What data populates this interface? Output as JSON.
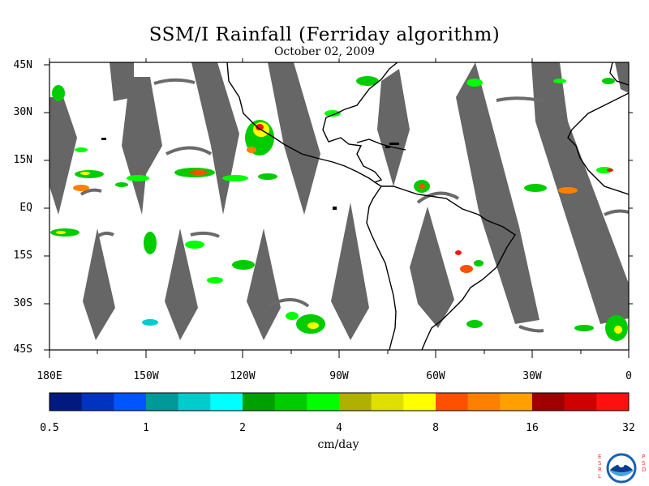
{
  "title": "SSM/I Rainfall (Ferriday algorithm)",
  "subtitle": "October 02, 2009",
  "y_axis_labels": [
    "45N",
    "30N",
    "15N",
    "EQ",
    "15S",
    "30S",
    "45S"
  ],
  "x_axis_labels": [
    "180E",
    "150W",
    "120W",
    "90W",
    "60W",
    "30W",
    "0"
  ],
  "colorbar": {
    "colors": [
      "#001a80",
      "#0033c0",
      "#0055ff",
      "#009999",
      "#00cccc",
      "#00ffff",
      "#00a000",
      "#00cc00",
      "#00ff00",
      "#b0b000",
      "#e0e000",
      "#ffff00",
      "#ff5000",
      "#ff8000",
      "#ffa000",
      "#a00000",
      "#d00000",
      "#ff1010"
    ],
    "tick_labels": [
      "0.5",
      "1",
      "2",
      "4",
      "8",
      "16",
      "32"
    ],
    "units": "cm/day"
  },
  "colors": {
    "swath_gap": "#666666",
    "coastline": "#000000"
  },
  "logo": {
    "name": "noaa-logo-icon",
    "left_letters": "ESRL",
    "right_letters": "PSD"
  }
}
